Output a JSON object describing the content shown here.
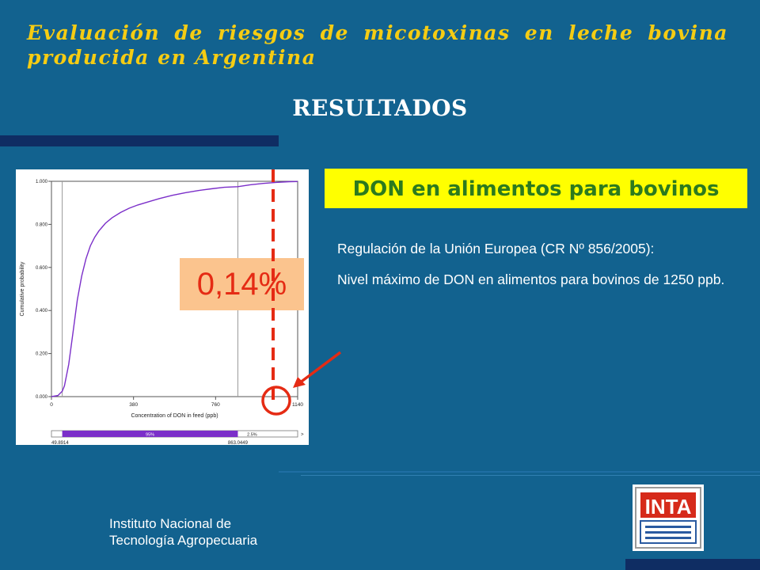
{
  "header": {
    "title_line1": "Evaluación de riesgos de micotoxinas en leche bovina",
    "title_line2": "producida en Argentina"
  },
  "section_title": "RESULTADOS",
  "don_heading": "DON en alimentos para bovinos",
  "body": {
    "p1": "Regulación de la Unión Europea (CR Nº 856/2005):",
    "p2": "Nivel máximo de DON en alimentos para bovinos de 1250 ppb."
  },
  "callout_value": "0,14%",
  "footer": {
    "org_line1": "Instituto Nacional de",
    "org_line2": "Tecnología Agropecuaria",
    "logo_text": "INTA"
  },
  "colors": {
    "background": "#12628f",
    "title": "#f5cc13",
    "heading_box": "#ffff00",
    "heading_text": "#2c7a1e",
    "callout_box": "#fbc48e",
    "highlight": "#e52b14",
    "curve": "#7b2fc9"
  },
  "chart_data": {
    "type": "line",
    "title": "",
    "xlabel": "Concentration of DON in feed (ppb)",
    "ylabel": "Cumulative probability",
    "xlim": [
      0,
      1140
    ],
    "ylim": [
      0,
      1
    ],
    "x_ticks": [
      "0",
      "380",
      "760",
      "1140"
    ],
    "y_ticks": [
      "0.000",
      "0.200",
      "0.400",
      "0.600",
      "0.800",
      "1.000"
    ],
    "series": [
      {
        "x": [
          0,
          30,
          49.89,
          60,
          80,
          100,
          120,
          140,
          160,
          180,
          200,
          220,
          250,
          280,
          320,
          360,
          400,
          450,
          500,
          560,
          620,
          680,
          740,
          800,
          863.04,
          920,
          980,
          1040,
          1100,
          1140
        ],
        "y": [
          0,
          0.005,
          0.025,
          0.05,
          0.15,
          0.3,
          0.45,
          0.56,
          0.64,
          0.7,
          0.74,
          0.77,
          0.805,
          0.83,
          0.855,
          0.875,
          0.89,
          0.905,
          0.92,
          0.935,
          0.947,
          0.957,
          0.965,
          0.972,
          0.975,
          0.984,
          0.99,
          0.995,
          0.998,
          0.999
        ]
      }
    ],
    "bottom_bar": {
      "lower_value": "49.8914",
      "upper_value": "863.0449",
      "inner_label": "95%",
      "right_label": "2.5%",
      "arrow": ">"
    },
    "limit_ppb": 1250,
    "grid": false
  }
}
